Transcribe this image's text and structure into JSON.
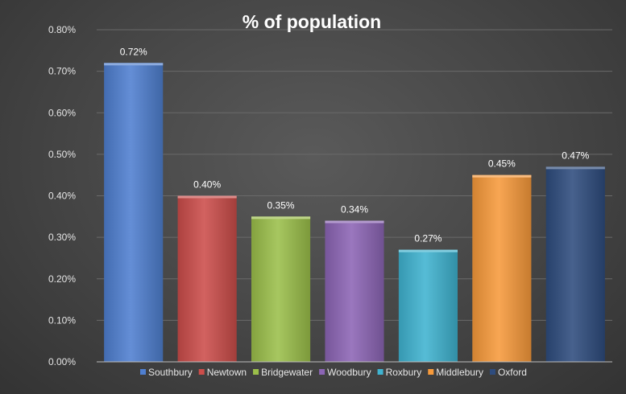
{
  "chart_data": {
    "type": "bar",
    "title": "% of population",
    "xlabel": "",
    "ylabel": "",
    "categories": [
      "Southbury",
      "Newtown",
      "Bridgewater",
      "Woodbury",
      "Roxbury",
      "Middlebury",
      "Oxford"
    ],
    "values": [
      0.72,
      0.4,
      0.35,
      0.34,
      0.27,
      0.45,
      0.47
    ],
    "data_labels": [
      "0.72%",
      "0.40%",
      "0.35%",
      "0.34%",
      "0.27%",
      "0.45%",
      "0.47%"
    ],
    "yticks": [
      "0.00%",
      "0.10%",
      "0.20%",
      "0.30%",
      "0.40%",
      "0.50%",
      "0.60%",
      "0.70%",
      "0.80%"
    ],
    "ylim": [
      0,
      0.8
    ],
    "grid": true,
    "legend_position": "bottom",
    "colors": [
      "#4f7fd0",
      "#cc4d4a",
      "#9bbf4a",
      "#8c65b5",
      "#3fb3d0",
      "#f79a3b",
      "#2e4c7e"
    ]
  }
}
